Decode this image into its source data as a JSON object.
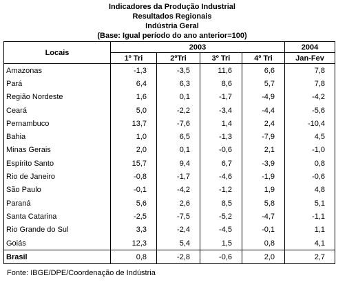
{
  "header": {
    "title": "Indicadores da Produção Industrial",
    "subtitle": "Resultados Regionais",
    "scope": "Indústria Geral",
    "base": "(Base: Igual período do ano anterior=100)"
  },
  "table": {
    "row_header": "Locais",
    "groups": [
      "2003",
      "2004"
    ],
    "columns": [
      "1º Tri",
      "2ºTri",
      "3º Tri",
      "4º Tri",
      "Jan-Fev"
    ],
    "rows": [
      [
        "Amazonas",
        "-1,3",
        "-3,5",
        "11,6",
        "6,6",
        "7,8"
      ],
      [
        "Pará",
        "6,4",
        "6,3",
        "8,6",
        "5,7",
        "7,8"
      ],
      [
        "Região Nordeste",
        "1,6",
        "0,1",
        "-1,7",
        "-4,9",
        "-4,2"
      ],
      [
        "Ceará",
        "5,0",
        "-2,2",
        "-3,4",
        "-4,4",
        "-5,6"
      ],
      [
        "Pernambuco",
        "13,7",
        "-7,6",
        "1,4",
        "2,4",
        "-10,4"
      ],
      [
        "Bahia",
        "1,0",
        "6,5",
        "-1,3",
        "-7,9",
        "4,5"
      ],
      [
        "Minas Gerais",
        "2,0",
        "0,1",
        "-0,6",
        "2,1",
        "-1,0"
      ],
      [
        "Espírito Santo",
        "15,7",
        "9,4",
        "6,7",
        "-3,9",
        "0,8"
      ],
      [
        "Rio de Janeiro",
        "-0,8",
        "-1,7",
        "-4,6",
        "-1,9",
        "-0,6"
      ],
      [
        "São Paulo",
        "-0,1",
        "-4,2",
        "-1,2",
        "1,9",
        "4,8"
      ],
      [
        "Paraná",
        "5,6",
        "2,6",
        "8,5",
        "5,8",
        "5,1"
      ],
      [
        "Santa Catarina",
        "-2,5",
        "-7,5",
        "-5,2",
        "-4,7",
        "-1,1"
      ],
      [
        "Rio Grande do Sul",
        "3,3",
        "-2,4",
        "-4,5",
        "-0,1",
        "1,1"
      ],
      [
        "Goiás",
        "12,3",
        "5,4",
        "1,5",
        "0,8",
        "4,1"
      ],
      [
        "Brasil",
        "0,8",
        "-2,8",
        "-0,6",
        "2,0",
        "2,7"
      ]
    ]
  },
  "footer": {
    "source": "Fonte: IBGE/DPE/Coordenação de Indústria"
  }
}
